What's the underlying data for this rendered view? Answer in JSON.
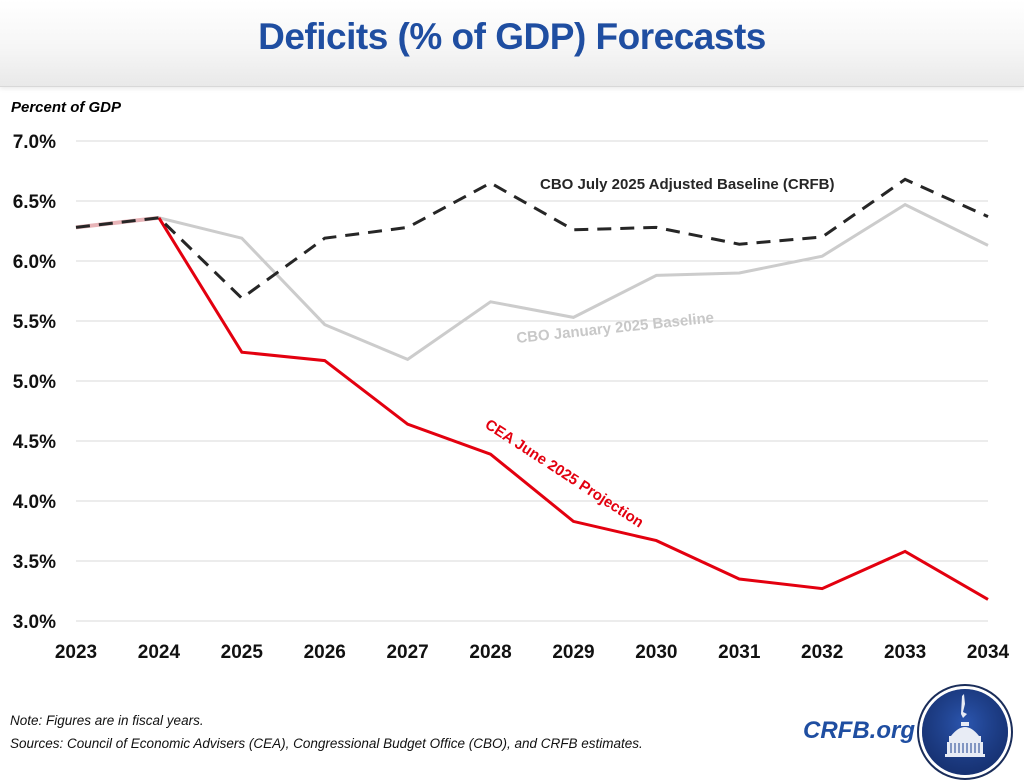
{
  "header": {
    "title": "Deficits (% of GDP) Forecasts"
  },
  "chart_data": {
    "type": "line",
    "title": "Deficits (% of GDP) Forecasts",
    "xlabel": "",
    "ylabel": "Percent of GDP",
    "ylim": [
      3.0,
      7.0
    ],
    "y_ticks": [
      3.0,
      3.5,
      4.0,
      4.5,
      5.0,
      5.5,
      6.0,
      6.5,
      7.0
    ],
    "y_tick_labels": [
      "3.0%",
      "3.5%",
      "4.0%",
      "4.5%",
      "5.0%",
      "5.5%",
      "6.0%",
      "6.5%",
      "7.0%"
    ],
    "grid": true,
    "categories": [
      "2023",
      "2024",
      "2025",
      "2026",
      "2027",
      "2028",
      "2029",
      "2030",
      "2031",
      "2032",
      "2033",
      "2034"
    ],
    "series": [
      {
        "name": "CBO January 2025 Baseline",
        "color": "#cccccc",
        "style": "solid",
        "values": [
          6.28,
          6.36,
          6.19,
          5.47,
          5.18,
          5.66,
          5.53,
          5.88,
          5.9,
          6.04,
          6.47,
          6.13
        ]
      },
      {
        "name": "CEA June 2025 Projection",
        "color": "#e3000f",
        "style": "solid",
        "values": [
          6.28,
          6.36,
          5.24,
          5.17,
          4.64,
          4.39,
          3.83,
          3.67,
          3.35,
          3.27,
          3.58,
          3.18
        ]
      },
      {
        "name": "CBO July 2025 Adjusted Baseline (CRFB)",
        "color": "#262626",
        "style": "dashed",
        "values": [
          6.28,
          6.36,
          5.69,
          6.19,
          6.28,
          6.65,
          6.26,
          6.28,
          6.14,
          6.2,
          6.68,
          6.37
        ]
      }
    ],
    "annotations": [
      {
        "text": "CBO July 2025 Adjusted Baseline (CRFB)",
        "series": "CBO July 2025 Adjusted Baseline (CRFB)",
        "color": "#262626"
      },
      {
        "text": "CBO January 2025 Baseline",
        "series": "CBO January 2025 Baseline",
        "color": "#c8c8c8"
      },
      {
        "text": "CEA June 2025 Projection",
        "series": "CEA June 2025 Projection",
        "color": "#e3000f"
      }
    ]
  },
  "footer": {
    "note": "Note: Figures are in fiscal years.",
    "sources": "Sources: Council of Economic Advisers (CEA), Congressional Budget Office (CBO), and CRFB estimates.",
    "brand": "CRFB.org",
    "logo_icon": "capitol-dome-icon"
  }
}
